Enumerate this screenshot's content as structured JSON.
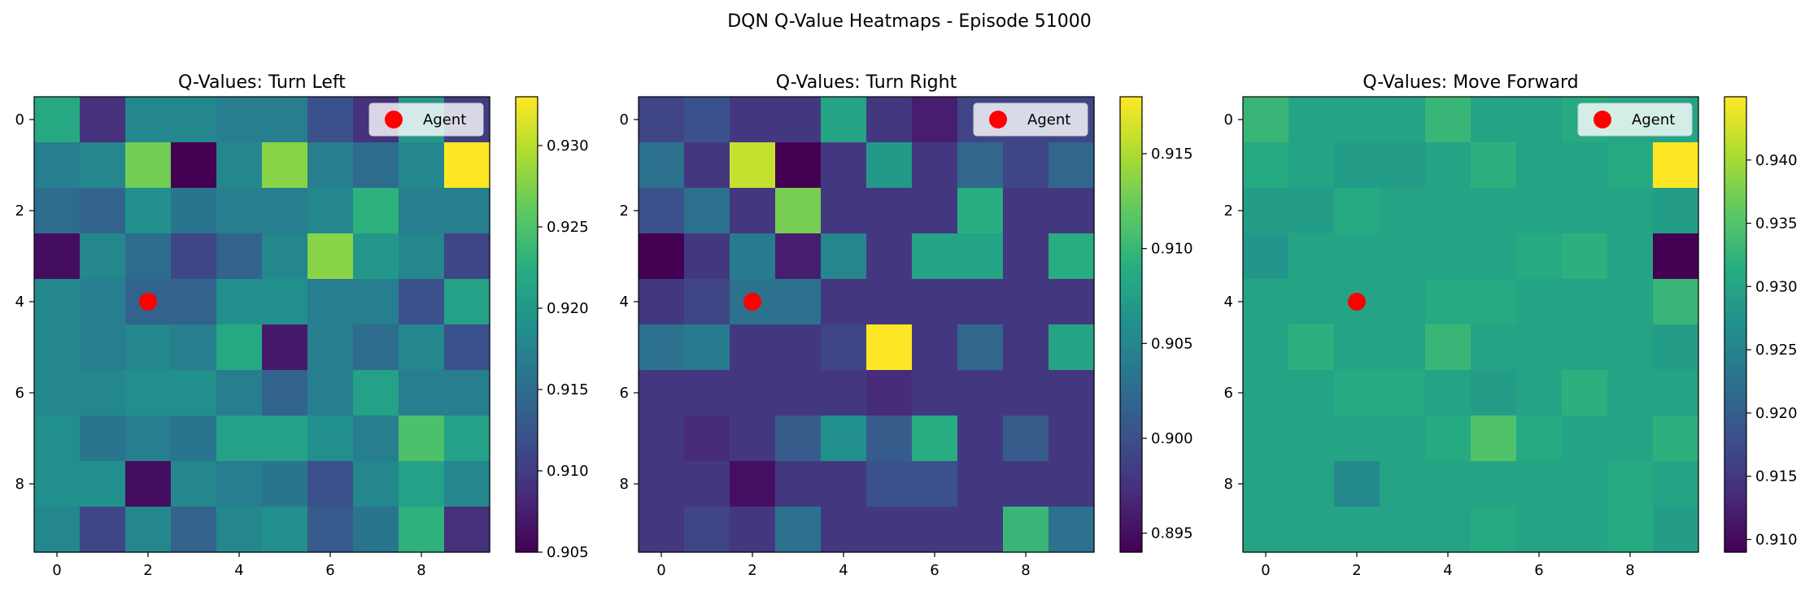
{
  "figure_title": "DQN Q-Value Heatmaps - Episode 51000",
  "chart_data": [
    {
      "type": "heatmap",
      "title": "Q-Values: Turn Left",
      "colormap": "viridis",
      "vmin": 0.905,
      "vmax": 0.933,
      "colorbar_ticks": [
        0.905,
        0.91,
        0.915,
        0.92,
        0.925,
        0.93
      ],
      "colorbar_tick_labels": [
        "0.905",
        "0.910",
        "0.915",
        "0.920",
        "0.925",
        "0.930"
      ],
      "x_ticks": [
        0,
        2,
        4,
        6,
        8
      ],
      "x_tick_labels": [
        "0",
        "2",
        "4",
        "6",
        "8"
      ],
      "y_ticks": [
        0,
        2,
        4,
        6,
        8
      ],
      "y_tick_labels": [
        "0",
        "2",
        "4",
        "6",
        "8"
      ],
      "agent": {
        "row": 4,
        "col": 2
      },
      "legend": {
        "label": "Agent",
        "position": "upper right"
      },
      "values": [
        [
          0.922,
          0.909,
          0.918,
          0.918,
          0.917,
          0.917,
          0.912,
          0.909,
          0.92,
          0.91
        ],
        [
          0.917,
          0.918,
          0.927,
          0.905,
          0.918,
          0.928,
          0.917,
          0.915,
          0.918,
          0.933
        ],
        [
          0.915,
          0.914,
          0.919,
          0.916,
          0.917,
          0.917,
          0.918,
          0.923,
          0.917,
          0.917
        ],
        [
          0.906,
          0.918,
          0.915,
          0.911,
          0.914,
          0.918,
          0.928,
          0.92,
          0.918,
          0.911
        ],
        [
          0.918,
          0.917,
          0.914,
          0.914,
          0.919,
          0.919,
          0.917,
          0.917,
          0.912,
          0.921
        ],
        [
          0.918,
          0.917,
          0.918,
          0.917,
          0.922,
          0.907,
          0.917,
          0.915,
          0.918,
          0.912
        ],
        [
          0.918,
          0.918,
          0.919,
          0.919,
          0.917,
          0.914,
          0.917,
          0.921,
          0.917,
          0.917
        ],
        [
          0.919,
          0.916,
          0.917,
          0.916,
          0.921,
          0.921,
          0.919,
          0.917,
          0.925,
          0.921
        ],
        [
          0.919,
          0.919,
          0.906,
          0.918,
          0.917,
          0.916,
          0.912,
          0.918,
          0.921,
          0.918
        ],
        [
          0.918,
          0.911,
          0.918,
          0.914,
          0.918,
          0.919,
          0.913,
          0.916,
          0.923,
          0.909
        ]
      ]
    },
    {
      "type": "heatmap",
      "title": "Q-Values: Turn Right",
      "colormap": "viridis",
      "vmin": 0.894,
      "vmax": 0.918,
      "colorbar_ticks": [
        0.895,
        0.9,
        0.905,
        0.91,
        0.915
      ],
      "colorbar_tick_labels": [
        "0.895",
        "0.900",
        "0.905",
        "0.910",
        "0.915"
      ],
      "x_ticks": [
        0,
        2,
        4,
        6,
        8
      ],
      "x_tick_labels": [
        "0",
        "2",
        "4",
        "6",
        "8"
      ],
      "y_ticks": [
        0,
        2,
        4,
        6,
        8
      ],
      "y_tick_labels": [
        "0",
        "2",
        "4",
        "6",
        "8"
      ],
      "agent": {
        "row": 4,
        "col": 2
      },
      "legend": {
        "label": "Agent",
        "position": "upper right"
      },
      "values": [
        [
          0.899,
          0.9,
          0.898,
          0.898,
          0.908,
          0.898,
          0.896,
          0.899,
          0.899,
          0.899
        ],
        [
          0.903,
          0.898,
          0.916,
          0.894,
          0.898,
          0.907,
          0.898,
          0.902,
          0.899,
          0.902
        ],
        [
          0.9,
          0.903,
          0.898,
          0.913,
          0.898,
          0.898,
          0.898,
          0.909,
          0.898,
          0.898
        ],
        [
          0.894,
          0.898,
          0.904,
          0.896,
          0.905,
          0.898,
          0.908,
          0.908,
          0.898,
          0.909
        ],
        [
          0.898,
          0.899,
          0.903,
          0.903,
          0.898,
          0.898,
          0.898,
          0.898,
          0.898,
          0.898
        ],
        [
          0.903,
          0.904,
          0.898,
          0.898,
          0.899,
          0.918,
          0.898,
          0.902,
          0.898,
          0.908
        ],
        [
          0.898,
          0.898,
          0.898,
          0.898,
          0.898,
          0.897,
          0.898,
          0.898,
          0.898,
          0.898
        ],
        [
          0.898,
          0.897,
          0.898,
          0.901,
          0.906,
          0.901,
          0.909,
          0.898,
          0.901,
          0.898
        ],
        [
          0.898,
          0.898,
          0.895,
          0.898,
          0.898,
          0.9,
          0.9,
          0.898,
          0.898,
          0.898
        ],
        [
          0.898,
          0.899,
          0.898,
          0.903,
          0.898,
          0.898,
          0.898,
          0.898,
          0.91,
          0.903
        ]
      ]
    },
    {
      "type": "heatmap",
      "title": "Q-Values: Move Forward",
      "colormap": "viridis",
      "vmin": 0.909,
      "vmax": 0.945,
      "colorbar_ticks": [
        0.91,
        0.915,
        0.92,
        0.925,
        0.93,
        0.935,
        0.94
      ],
      "colorbar_tick_labels": [
        "0.910",
        "0.915",
        "0.920",
        "0.925",
        "0.930",
        "0.935",
        "0.940"
      ],
      "x_ticks": [
        0,
        2,
        4,
        6,
        8
      ],
      "x_tick_labels": [
        "0",
        "2",
        "4",
        "6",
        "8"
      ],
      "y_ticks": [
        0,
        2,
        4,
        6,
        8
      ],
      "y_tick_labels": [
        "0",
        "2",
        "4",
        "6",
        "8"
      ],
      "agent": {
        "row": 4,
        "col": 2
      },
      "legend": {
        "label": "Agent",
        "position": "upper right"
      },
      "values": [
        [
          0.933,
          0.93,
          0.93,
          0.93,
          0.933,
          0.93,
          0.93,
          0.931,
          0.93,
          0.93
        ],
        [
          0.931,
          0.93,
          0.929,
          0.929,
          0.93,
          0.932,
          0.93,
          0.93,
          0.931,
          0.945
        ],
        [
          0.929,
          0.929,
          0.931,
          0.93,
          0.93,
          0.93,
          0.93,
          0.93,
          0.93,
          0.929
        ],
        [
          0.928,
          0.93,
          0.93,
          0.93,
          0.93,
          0.93,
          0.931,
          0.932,
          0.93,
          0.909
        ],
        [
          0.93,
          0.93,
          0.93,
          0.93,
          0.931,
          0.931,
          0.93,
          0.93,
          0.93,
          0.933
        ],
        [
          0.93,
          0.932,
          0.93,
          0.93,
          0.933,
          0.93,
          0.93,
          0.93,
          0.93,
          0.929
        ],
        [
          0.93,
          0.93,
          0.931,
          0.931,
          0.93,
          0.929,
          0.93,
          0.932,
          0.93,
          0.93
        ],
        [
          0.93,
          0.93,
          0.93,
          0.93,
          0.931,
          0.935,
          0.931,
          0.93,
          0.93,
          0.932
        ],
        [
          0.93,
          0.93,
          0.926,
          0.93,
          0.93,
          0.93,
          0.93,
          0.93,
          0.931,
          0.93
        ],
        [
          0.93,
          0.93,
          0.93,
          0.93,
          0.93,
          0.931,
          0.93,
          0.93,
          0.931,
          0.929
        ]
      ]
    }
  ]
}
